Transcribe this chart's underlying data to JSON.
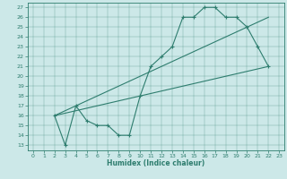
{
  "xlabel": "Humidex (Indice chaleur)",
  "bg_color": "#cce8e8",
  "line_color": "#2e7d6e",
  "xlim": [
    -0.5,
    23.5
  ],
  "ylim": [
    12.5,
    27.5
  ],
  "xticks": [
    0,
    1,
    2,
    3,
    4,
    5,
    6,
    7,
    8,
    9,
    10,
    11,
    12,
    13,
    14,
    15,
    16,
    17,
    18,
    19,
    20,
    21,
    22,
    23
  ],
  "yticks": [
    13,
    14,
    15,
    16,
    17,
    18,
    19,
    20,
    21,
    22,
    23,
    24,
    25,
    26,
    27
  ],
  "line1_x": [
    2,
    3,
    4,
    5,
    6,
    7,
    8,
    9,
    10,
    11,
    12,
    13,
    14,
    15,
    16,
    17,
    18,
    19,
    20,
    21,
    22
  ],
  "line1_y": [
    16,
    13,
    17,
    15.5,
    15,
    15,
    14,
    14,
    18,
    21,
    22,
    23,
    26,
    26,
    27,
    27,
    26,
    26,
    25,
    23,
    21
  ],
  "line2_x": [
    2,
    22
  ],
  "line2_y": [
    16,
    21
  ],
  "line3_x": [
    2,
    22
  ],
  "line3_y": [
    16,
    26
  ]
}
